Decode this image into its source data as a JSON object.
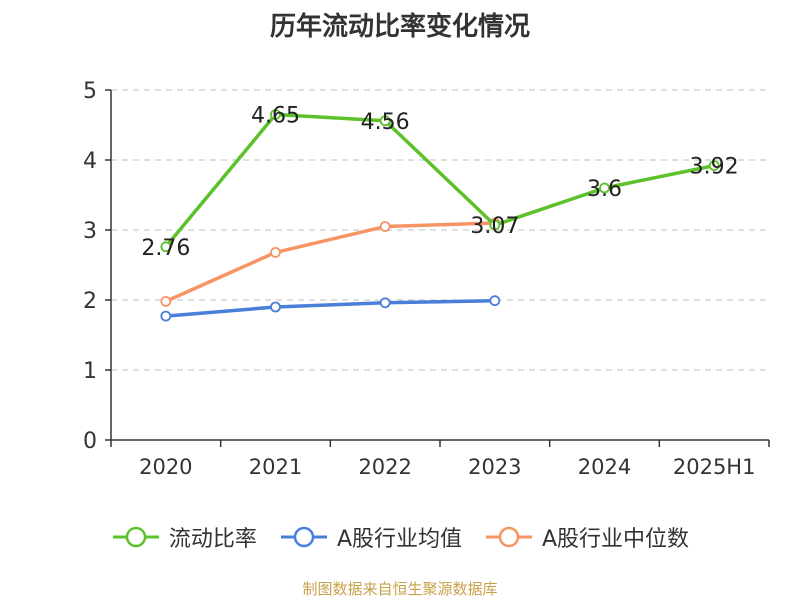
{
  "chart_data": {
    "type": "line",
    "title": "历年流动比率变化情况",
    "categories": [
      "2020",
      "2021",
      "2022",
      "2023",
      "2024",
      "2025H1"
    ],
    "y_ticks": [
      "0",
      "1",
      "2",
      "3",
      "4",
      "5"
    ],
    "ylim": [
      0,
      5
    ],
    "grid": true,
    "legend_position": "bottom",
    "series": [
      {
        "name": "流动比率",
        "color": "#5cc12a",
        "values": [
          2.76,
          4.65,
          4.56,
          3.07,
          3.6,
          3.92
        ],
        "labels": [
          "2.76",
          "4.65",
          "4.56",
          "3.07",
          "3.6",
          "3.92"
        ]
      },
      {
        "name": "A股行业均值",
        "color": "#4a7fd9",
        "values": [
          1.77,
          1.9,
          1.96,
          1.99,
          null,
          null
        ]
      },
      {
        "name": "A股行业中位数",
        "color": "#f79464",
        "values": [
          1.98,
          2.68,
          3.05,
          3.1,
          null,
          null
        ]
      }
    ]
  },
  "source_text": "制图数据来自恒生聚源数据库"
}
